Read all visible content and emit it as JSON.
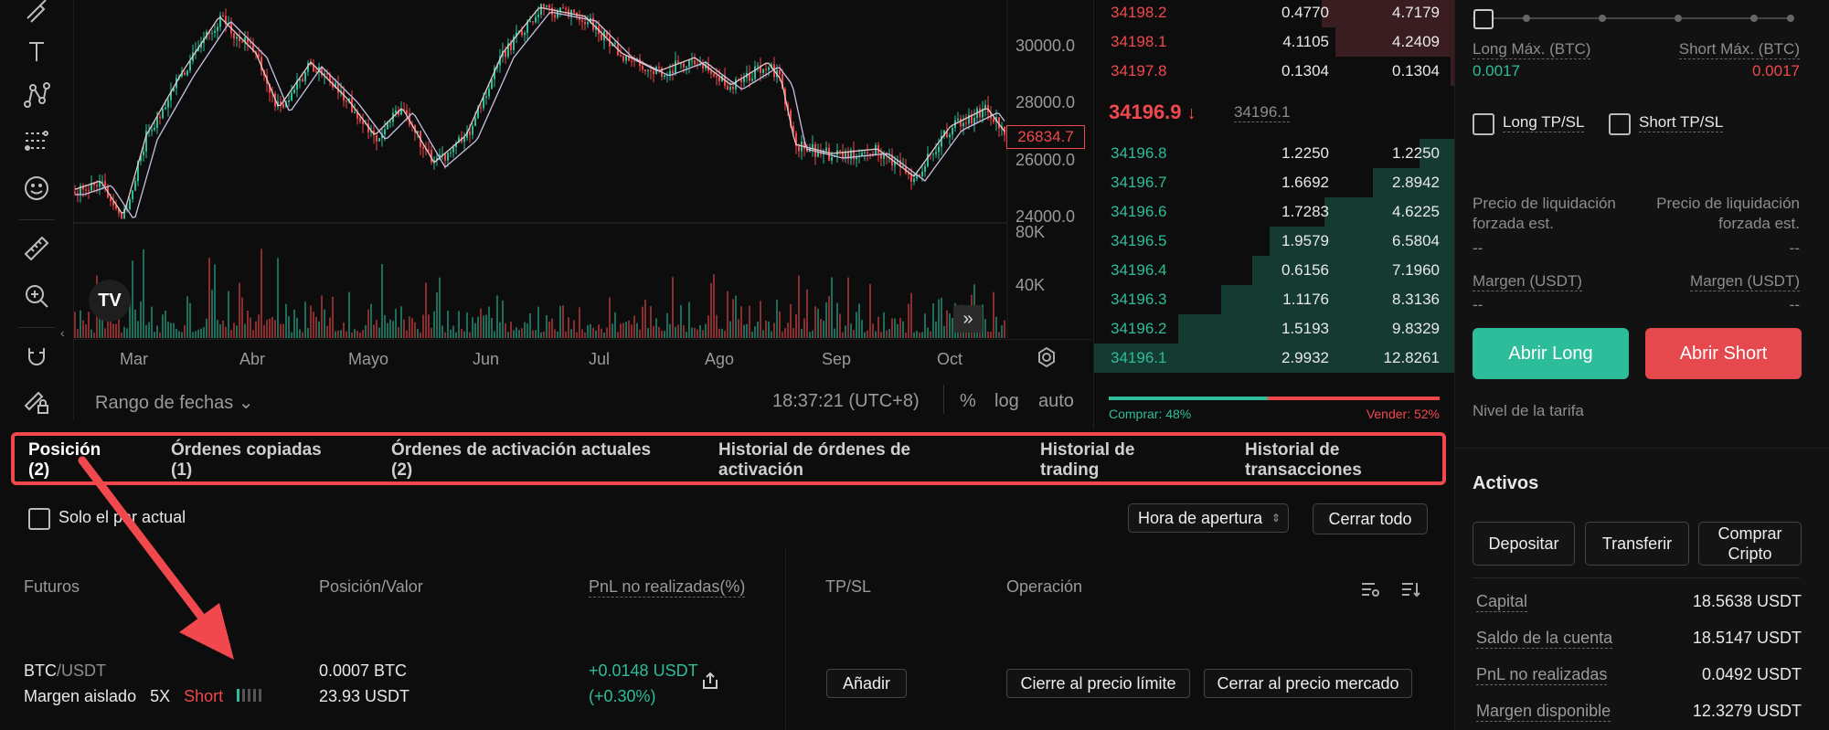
{
  "chart": {
    "price_axis": [
      "30000.0",
      "28000.0",
      "26000.0",
      "24000.0"
    ],
    "volume_axis": [
      "80K",
      "40K"
    ],
    "last_price_tag": "26834.7",
    "months": [
      "Mar",
      "Abr",
      "Mayo",
      "Jun",
      "Jul",
      "Ago",
      "Sep",
      "Oct"
    ],
    "date_range_label": "Rango de fechas",
    "time": "18:37:21 (UTC+8)",
    "percent_btn": "%",
    "log_btn": "log",
    "auto_btn": "auto",
    "tv_logo": "TV",
    "colors": {
      "up": "#2ebd9a",
      "down": "#f0484d"
    }
  },
  "orderbook": {
    "asks": [
      {
        "price": "34198.2",
        "amount": "0.4770",
        "total": "4.7179"
      },
      {
        "price": "34198.1",
        "amount": "4.1105",
        "total": "4.2409"
      },
      {
        "price": "34197.8",
        "amount": "0.1304",
        "total": "0.1304"
      }
    ],
    "last_price": "34196.9",
    "mark_price": "34196.1",
    "bids": [
      {
        "price": "34196.8",
        "amount": "1.2250",
        "total": "1.2250"
      },
      {
        "price": "34196.7",
        "amount": "1.6692",
        "total": "2.8942"
      },
      {
        "price": "34196.6",
        "amount": "1.7283",
        "total": "4.6225"
      },
      {
        "price": "34196.5",
        "amount": "1.9579",
        "total": "6.5804"
      },
      {
        "price": "34196.4",
        "amount": "0.6156",
        "total": "7.1960"
      },
      {
        "price": "34196.3",
        "amount": "1.1176",
        "total": "8.3136"
      },
      {
        "price": "34196.2",
        "amount": "1.5193",
        "total": "9.8329"
      },
      {
        "price": "34196.1",
        "amount": "2.9932",
        "total": "12.8261"
      }
    ],
    "buy_ratio": "Comprar: 48%",
    "sell_ratio": "Vender: 52%",
    "buy_fraction": 0.48
  },
  "trade_panel": {
    "long_max_label": "Long Máx. (BTC)",
    "long_max_value": "0.0017",
    "short_max_label": "Short Máx. (BTC)",
    "short_max_value": "0.0017",
    "long_tpsl": "Long TP/SL",
    "short_tpsl": "Short TP/SL",
    "liq_label": "Precio de liquidación forzada est.",
    "liq_long_value": "--",
    "liq_short_value": "--",
    "margin_label": "Margen (USDT)",
    "margin_long_value": "--",
    "margin_short_value": "--",
    "open_long": "Abrir Long",
    "open_short": "Abrir Short",
    "fee_level": "Nivel de la tarifa"
  },
  "assets": {
    "title": "Activos",
    "deposit": "Depositar",
    "transfer": "Transferir",
    "buy_crypto": "Comprar Cripto",
    "rows": [
      {
        "label": "Capital",
        "value": "18.5638 USDT"
      },
      {
        "label": "Saldo de la cuenta",
        "value": "18.5147 USDT"
      },
      {
        "label": "PnL no realizadas",
        "value": "0.0492 USDT"
      },
      {
        "label": "Margen disponible",
        "value": "12.3279 USDT"
      }
    ]
  },
  "tabs": [
    {
      "label": "Posición",
      "count": "(2)"
    },
    {
      "label": "Órdenes copiadas",
      "count": "(1)"
    },
    {
      "label": "Órdenes de activación actuales",
      "count": "(2)"
    },
    {
      "label": "Historial de órdenes de",
      "count": "activación"
    },
    {
      "label": "Historial de",
      "count": "trading"
    },
    {
      "label": "Historial de",
      "count": "transacciones"
    }
  ],
  "filters": {
    "only_current_pair": "Solo el par actual",
    "sort_select": "Hora de apertura",
    "close_all": "Cerrar todo"
  },
  "positions": {
    "headers": {
      "futures": "Futuros",
      "position_value": "Posición/Valor",
      "pnl": "PnL no realizadas(%)",
      "tpsl": "TP/SL",
      "operation": "Operación"
    },
    "row": {
      "base": "BTC",
      "quote": "/USDT",
      "margin_mode": "Margen aislado",
      "leverage": "5X",
      "side": "Short",
      "size": "0.0007 BTC",
      "value": "23.93 USDT",
      "pnl": "+0.0148  USDT",
      "pnl_pct": "(+0.30%)",
      "add_btn": "Añadir",
      "limit_close": "Cierre al precio límite",
      "market_close": "Cerrar al precio mercado"
    }
  }
}
